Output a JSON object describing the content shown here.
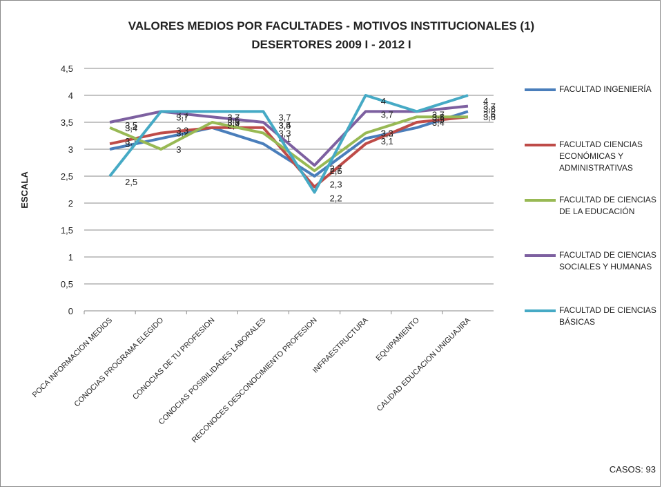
{
  "chart_data": {
    "type": "line",
    "title": "VALORES MEDIOS POR FACULTADES - MOTIVOS  INSTITUCIONALES (1)",
    "subtitle": "DESERTORES 2009 I - 2012  I",
    "y_label": "ESCALA",
    "annotation": "CASOS: 93",
    "categories": [
      "POCA INFORMACION MEDIOS",
      "CONOCIAS PROGRAMA ELEGIDO",
      "CONOCIAS DE TU PROFESION",
      "CONOCIAS POSIBILIDADES LABORALES",
      "RECONOCES DESCONOCIMIENTO PROFESION",
      "INFRAESTRUCTURA",
      "EQUIPAMIENTO",
      "CALIDAD EDUCACION UNIGUAJIRA"
    ],
    "series": [
      {
        "name": "FACULTAD INGENIERÍA",
        "color": "#4a7ebb",
        "values": [
          3.0,
          3.2,
          3.4,
          3.1,
          2.5,
          3.2,
          3.4,
          3.7
        ],
        "value_labels": [
          "3",
          "3,2",
          "3,4",
          "3,1",
          "2,5",
          "3,2",
          "3,4",
          "3,7"
        ]
      },
      {
        "name": "FACULTAD CIENCIAS ECONÓMICAS Y ADMINISTRATIVAS",
        "color": "#be4b48",
        "values": [
          3.1,
          3.3,
          3.4,
          3.4,
          2.3,
          3.1,
          3.5,
          3.6
        ],
        "value_labels": [
          "3,1",
          "3,3",
          "3,4",
          "3,4",
          "2,3",
          "3,1",
          "3,5",
          "3,6"
        ]
      },
      {
        "name": "FACULTAD DE CIENCIAS DE LA EDUCACIÓN",
        "color": "#98b954",
        "values": [
          3.4,
          3.0,
          3.5,
          3.3,
          2.6,
          3.3,
          3.6,
          3.6
        ],
        "value_labels": [
          "3,4",
          "3",
          "3,5",
          "3,3",
          "2,6",
          "3,3",
          "3,6",
          "3,6"
        ]
      },
      {
        "name": "FACULTAD DE CIENCIAS SOCIALES Y HUMANAS",
        "color": "#7d60a0",
        "values": [
          3.5,
          3.7,
          3.6,
          3.5,
          2.7,
          3.7,
          3.7,
          3.8
        ],
        "value_labels": [
          "3,5",
          "3,7",
          "3,6",
          "3,5",
          "2,7",
          "3,7",
          "3,7",
          "3,8"
        ]
      },
      {
        "name": "FACULTAD DE CIENCIAS BÁSICAS",
        "color": "#46aac5",
        "values": [
          2.5,
          3.7,
          3.7,
          3.7,
          2.2,
          4.0,
          3.7,
          4.0
        ],
        "value_labels": [
          "2,5",
          "3,7",
          "3,7",
          "3,7",
          "2,2",
          "4",
          "3,7",
          "4"
        ]
      }
    ],
    "ylim": [
      0,
      4.5
    ],
    "yticks": [
      0,
      {
        "value": 0.5,
        "label": "0,5"
      },
      1,
      {
        "value": 1.5,
        "label": "1,5"
      },
      2,
      {
        "value": 2.5,
        "label": "2,5"
      },
      3,
      {
        "value": 3.5,
        "label": "3,5"
      },
      4,
      {
        "value": 4.5,
        "label": "4,5"
      }
    ],
    "grid": true,
    "legend": "right"
  }
}
